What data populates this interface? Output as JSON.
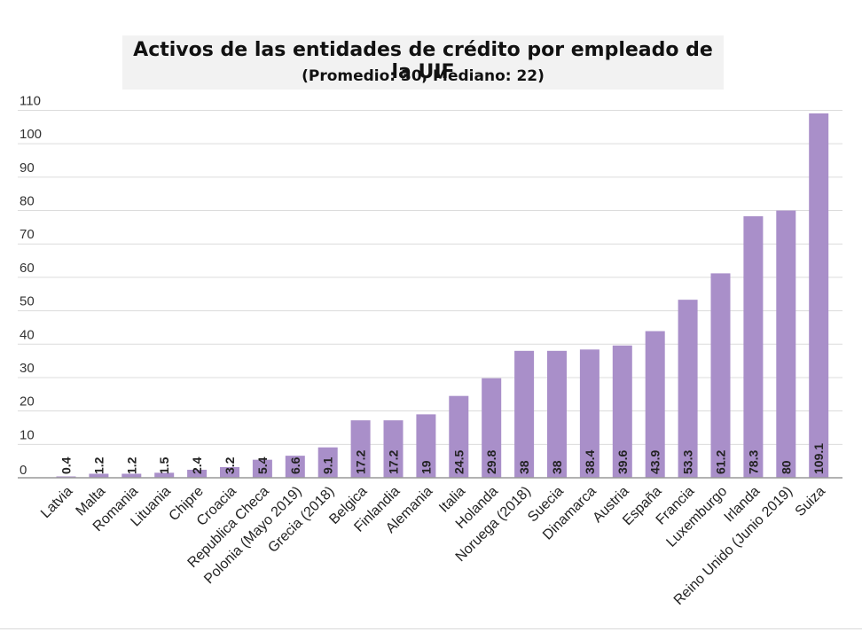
{
  "chart_data": {
    "type": "bar",
    "title": "Activos de las entidades de crédito por empleado de la UIF",
    "subtitle": "(Promedio: 30, Mediano: 22)",
    "xlabel": "",
    "ylabel": "",
    "ylim": [
      0,
      110
    ],
    "yticks": [
      0,
      10,
      20,
      30,
      40,
      50,
      60,
      70,
      80,
      90,
      100,
      110
    ],
    "grid": true,
    "bar_color": "#a98fc9",
    "categories": [
      "Latvia",
      "Malta",
      "Romania",
      "Lituania",
      "Chipre",
      "Croacia",
      "Republica Checa",
      "Polonia (Mayo 2019)",
      "Grecia (2018)",
      "Belgica",
      "Finlandia",
      "Alemania",
      "Italia",
      "Holanda",
      "Noruega (2018)",
      "Suecia",
      "Dinamarca",
      "Austria",
      "España",
      "Francia",
      "Luxemburgo",
      "Irlanda",
      "Reino Unido (Junio 2019)",
      "Suiza"
    ],
    "values": [
      0.4,
      1.2,
      1.2,
      1.5,
      2.4,
      3.2,
      5.4,
      6.6,
      9.1,
      17.2,
      17.2,
      19,
      24.5,
      29.8,
      38,
      38,
      38.4,
      39.6,
      43.9,
      53.3,
      61.2,
      78.3,
      80,
      109.1
    ],
    "value_labels": [
      "0.4",
      "1.2",
      "1.2",
      "1.5",
      "2.4",
      "3.2",
      "5.4",
      "6.6",
      "9.1",
      "17.2",
      "17.2",
      "19",
      "24.5",
      "29.8",
      "38",
      "38",
      "38.4",
      "39.6",
      "43.9",
      "53.3",
      "61.2",
      "78.3",
      "80",
      "109.1"
    ]
  }
}
